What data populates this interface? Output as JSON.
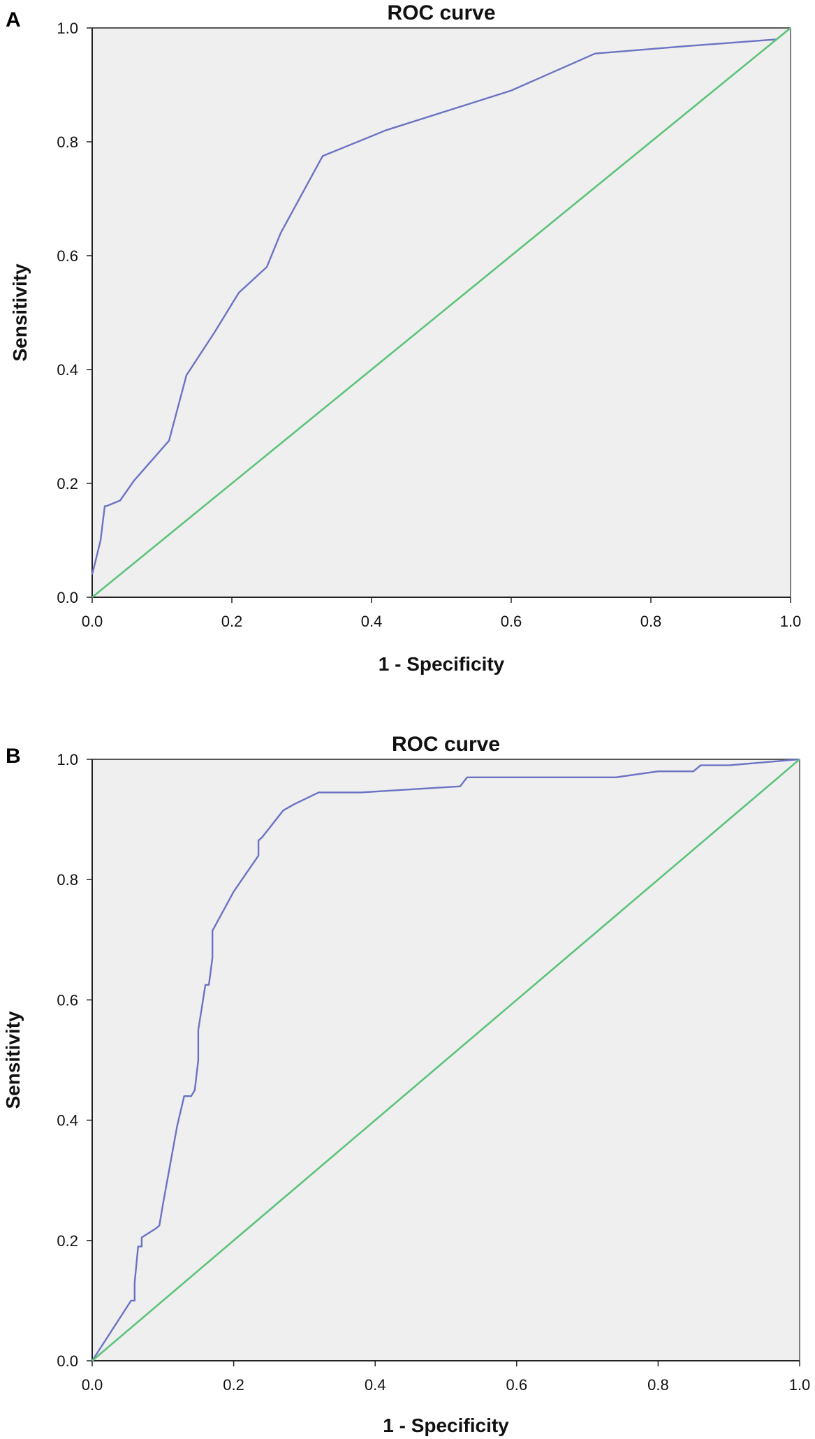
{
  "colors": {
    "plot_background": "#efefef",
    "frame": "#555555",
    "roc_curve": "#6b72c4",
    "reference_line": "#5cc47a"
  },
  "chart_data": [
    {
      "panel": "A",
      "type": "line",
      "title": "ROC curve",
      "xlabel": "1 - Specificity",
      "ylabel": "Sensitivity",
      "xlim": [
        0,
        1
      ],
      "ylim": [
        0,
        1
      ],
      "xticks": [
        "0.0",
        "0.2",
        "0.4",
        "0.6",
        "0.8",
        "1.0"
      ],
      "yticks": [
        "0.0",
        "0.2",
        "0.4",
        "0.6",
        "0.8",
        "1.0"
      ],
      "grid": false,
      "legend": "none",
      "series": [
        {
          "role": "roc",
          "x": [
            0.0,
            0.006,
            0.012,
            0.018,
            0.02,
            0.04,
            0.06,
            0.085,
            0.11,
            0.135,
            0.175,
            0.21,
            0.25,
            0.27,
            0.33,
            0.42,
            0.6,
            0.72,
            0.85,
            0.98,
            1.0
          ],
          "y": [
            0.04,
            0.07,
            0.1,
            0.16,
            0.16,
            0.17,
            0.205,
            0.24,
            0.275,
            0.39,
            0.465,
            0.535,
            0.58,
            0.64,
            0.775,
            0.82,
            0.89,
            0.955,
            0.968,
            0.98,
            1.0
          ]
        },
        {
          "role": "reference",
          "x": [
            0.0,
            1.0
          ],
          "y": [
            0.0,
            1.0
          ]
        }
      ]
    },
    {
      "panel": "B",
      "type": "line",
      "title": "ROC curve",
      "xlabel": "1 - Specificity",
      "ylabel": "Sensitivity",
      "xlim": [
        0,
        1
      ],
      "ylim": [
        0,
        1
      ],
      "xticks": [
        "0.0",
        "0.2",
        "0.4",
        "0.6",
        "0.8",
        "1.0"
      ],
      "yticks": [
        "0.0",
        "0.2",
        "0.4",
        "0.6",
        "0.8",
        "1.0"
      ],
      "grid": false,
      "legend": "none",
      "series": [
        {
          "role": "roc",
          "x": [
            0.0,
            0.055,
            0.06,
            0.06,
            0.065,
            0.07,
            0.07,
            0.09,
            0.095,
            0.1,
            0.1,
            0.12,
            0.13,
            0.14,
            0.145,
            0.15,
            0.15,
            0.16,
            0.165,
            0.17,
            0.17,
            0.2,
            0.235,
            0.235,
            0.24,
            0.27,
            0.285,
            0.32,
            0.38,
            0.52,
            0.53,
            0.62,
            0.74,
            0.8,
            0.85,
            0.86,
            0.9,
            1.0
          ],
          "y": [
            0.0,
            0.1,
            0.1,
            0.13,
            0.19,
            0.19,
            0.205,
            0.22,
            0.225,
            0.26,
            0.26,
            0.39,
            0.44,
            0.44,
            0.45,
            0.5,
            0.55,
            0.625,
            0.625,
            0.67,
            0.715,
            0.78,
            0.84,
            0.865,
            0.87,
            0.915,
            0.925,
            0.945,
            0.945,
            0.955,
            0.97,
            0.97,
            0.97,
            0.98,
            0.98,
            0.99,
            0.99,
            1.0
          ]
        },
        {
          "role": "reference",
          "x": [
            0.0,
            1.0
          ],
          "y": [
            0.0,
            1.0
          ]
        }
      ]
    }
  ]
}
